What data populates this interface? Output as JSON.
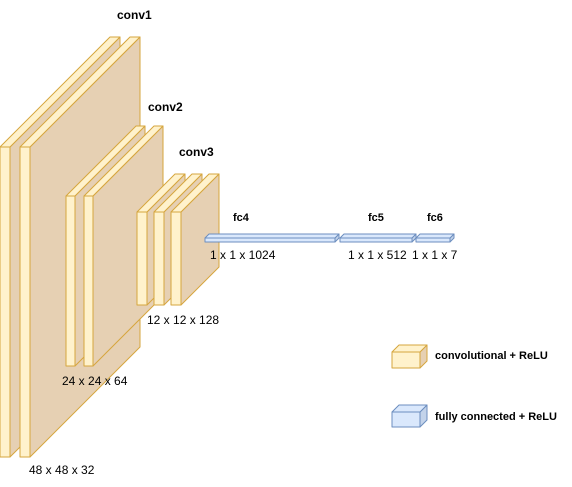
{
  "colors": {
    "conv_fill": "#fff2cc",
    "conv_side": "#e6d0b3",
    "conv_stroke": "#d6a63e",
    "fc_fill": "#dae8fc",
    "fc_side": "#c3d3ea",
    "fc_stroke": "#6c8ebf"
  },
  "layers": {
    "conv1": {
      "name": "conv1",
      "size": "48 x 48 x 32"
    },
    "conv2": {
      "name": "conv2",
      "size": "24 x 24 x 64"
    },
    "conv3": {
      "name": "conv3",
      "size": "12 x 12 x 128"
    },
    "fc4": {
      "name": "fc4",
      "size": "1 x 1 x 1024"
    },
    "fc5": {
      "name": "fc5",
      "size": "1 x 1 x 512"
    },
    "fc6": {
      "name": "fc6",
      "size": "1 x 1 x 7"
    }
  },
  "legend": {
    "conv": "convolutional + ReLU",
    "fc": "fully connected + ReLU"
  }
}
